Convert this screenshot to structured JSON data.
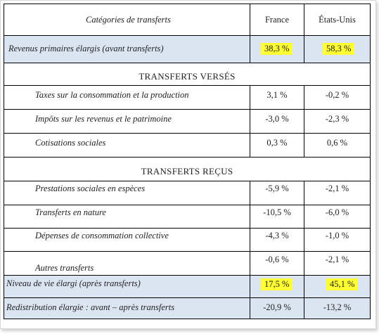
{
  "header": {
    "category": "Catégories de transferts",
    "france": "France",
    "usa": "États-Unis"
  },
  "primary": {
    "label": "Revenus primaires élargis (avant transferts)",
    "france": "38,3 %",
    "usa": "58,3 %"
  },
  "paid_title": "TRANSFERTS VERSÉS",
  "paid": [
    {
      "label": "Taxes sur la consommation et la production",
      "france": "3,1 %",
      "usa": "-0,2 %"
    },
    {
      "label": "Impôts sur les revenus et le patrimoine",
      "france": "-3,0 %",
      "usa": "-2,3 %"
    },
    {
      "label": "Cotisations sociales",
      "france": "0,3 %",
      "usa": "0,6 %"
    }
  ],
  "received_title": "TRANSFERTS REÇUS",
  "received": [
    {
      "label": "Prestations sociales en espèces",
      "france": "-5,9 %",
      "usa": "-2,1 %"
    },
    {
      "label": "Transferts en nature",
      "france": "-10,5 %",
      "usa": "-6,0 %"
    },
    {
      "label": "Dépenses de consommation collective",
      "france": "-4,3 %",
      "usa": "-1,0 %"
    },
    {
      "label": "Autres transferts",
      "france": "-0,6 %",
      "usa": "-2,1 %"
    }
  ],
  "living": {
    "label": "Niveau de vie élargi (après transferts)",
    "france": "17,5 %",
    "usa": "45,1 %"
  },
  "redistribution": {
    "label": "Redistribution élargie : avant – après transferts",
    "france": "-20,9 %",
    "usa": "-13,2 %"
  },
  "colors": {
    "shade": "#dbe5f1",
    "highlight": "#ffff33"
  }
}
